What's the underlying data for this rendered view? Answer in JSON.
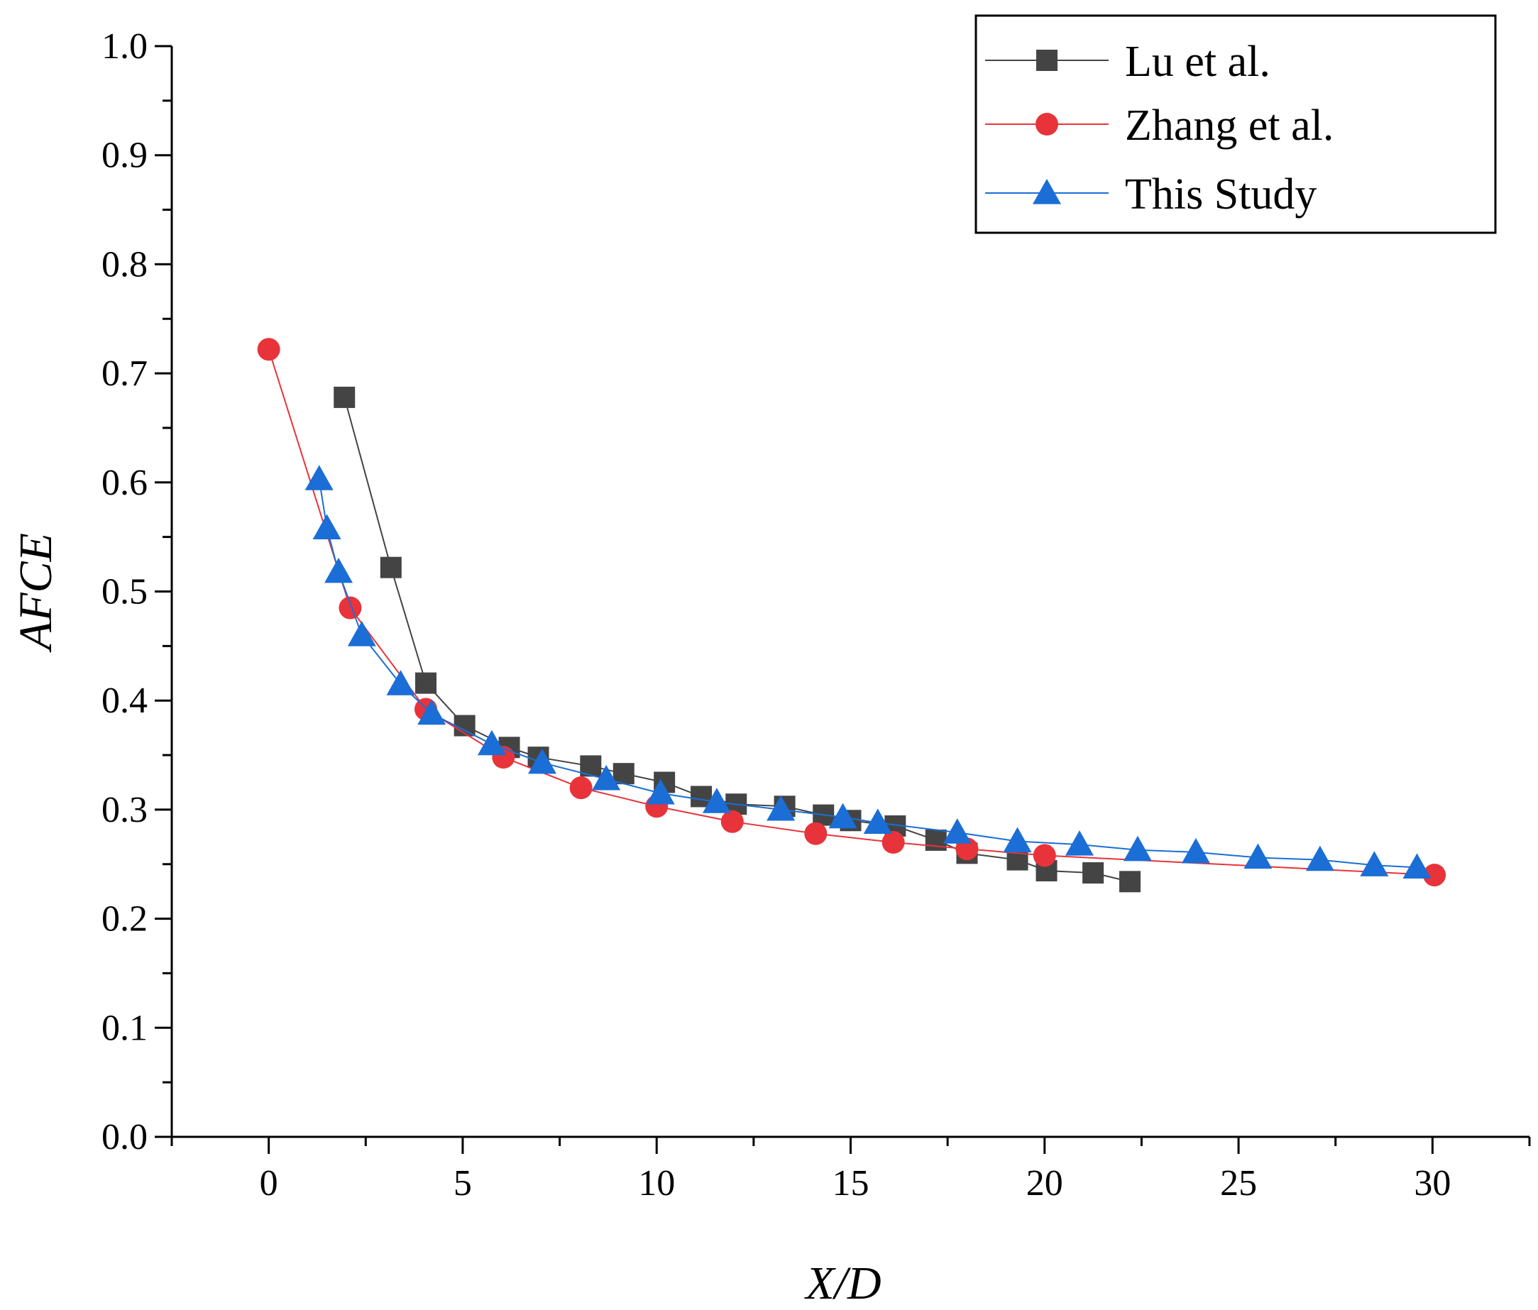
{
  "chart_data": {
    "type": "line",
    "xlabel": "X/D",
    "ylabel": "AFCE",
    "xlim": [
      -2.5,
      32.5
    ],
    "ylim": [
      0.0,
      1.0
    ],
    "x_ticks": [
      0,
      5,
      10,
      15,
      20,
      25,
      30
    ],
    "x_tick_labels": [
      "0",
      "5",
      "10",
      "15",
      "20",
      "25",
      "30"
    ],
    "y_ticks": [
      0.0,
      0.1,
      0.2,
      0.3,
      0.4,
      0.5,
      0.6,
      0.7,
      0.8,
      0.9,
      1.0
    ],
    "y_tick_labels": [
      "0.0",
      "0.1",
      "0.2",
      "0.3",
      "0.4",
      "0.5",
      "0.6",
      "0.7",
      "0.8",
      "0.9",
      "1.0"
    ],
    "legend_position": "top-right",
    "series": [
      {
        "name": "Lu et al.",
        "color": "#444444",
        "marker": "square",
        "x": [
          1.95,
          3.15,
          4.05,
          5.05,
          6.2,
          6.95,
          8.3,
          9.15,
          10.2,
          11.15,
          12.05,
          13.3,
          14.3,
          15.0,
          16.15,
          17.2,
          18.0,
          19.3,
          20.05,
          21.25,
          22.2
        ],
        "y": [
          0.678,
          0.522,
          0.416,
          0.377,
          0.357,
          0.348,
          0.34,
          0.333,
          0.325,
          0.312,
          0.305,
          0.303,
          0.295,
          0.29,
          0.285,
          0.272,
          0.26,
          0.254,
          0.244,
          0.242,
          0.234
        ]
      },
      {
        "name": "Zhang et al.",
        "color": "#e8333a",
        "marker": "circle",
        "x": [
          0.0,
          2.1,
          4.05,
          6.05,
          8.05,
          10.0,
          11.95,
          14.1,
          16.1,
          18.0,
          20.0,
          30.05
        ],
        "y": [
          0.722,
          0.485,
          0.392,
          0.348,
          0.32,
          0.303,
          0.289,
          0.278,
          0.27,
          0.264,
          0.258,
          0.24
        ]
      },
      {
        "name": "This Study",
        "color": "#1b6ed6",
        "marker": "triangle",
        "x": [
          1.3,
          1.5,
          1.8,
          2.4,
          3.4,
          4.2,
          5.75,
          7.05,
          8.7,
          10.1,
          11.55,
          13.2,
          14.8,
          15.7,
          17.75,
          19.3,
          20.9,
          22.4,
          23.9,
          25.5,
          27.1,
          28.5,
          29.6
        ],
        "y": [
          0.603,
          0.558,
          0.518,
          0.46,
          0.415,
          0.388,
          0.36,
          0.343,
          0.328,
          0.315,
          0.307,
          0.3,
          0.293,
          0.288,
          0.279,
          0.271,
          0.268,
          0.263,
          0.261,
          0.256,
          0.254,
          0.249,
          0.247
        ]
      }
    ]
  }
}
